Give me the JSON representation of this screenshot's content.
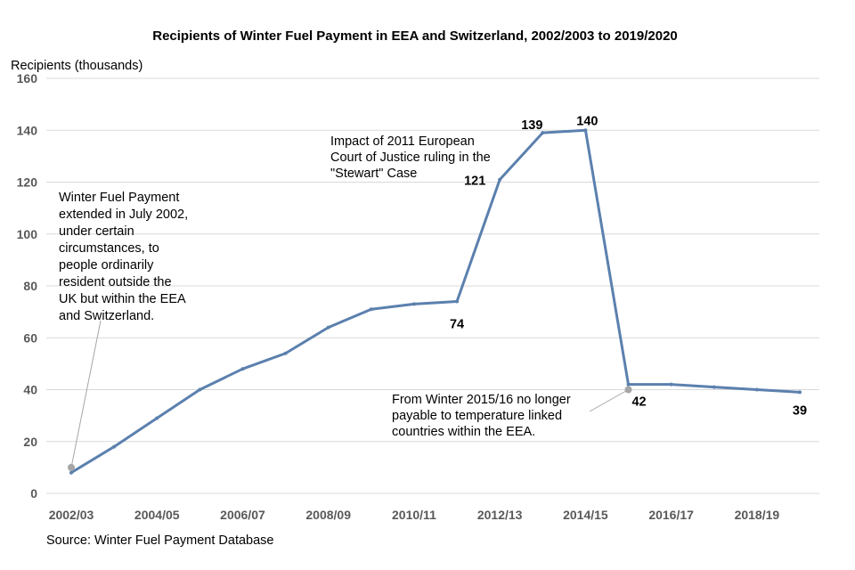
{
  "chart_data": {
    "type": "line",
    "title": "Recipients of Winter Fuel Payment in EEA and Switzerland, 2002/2003 to 2019/2020",
    "ylabel": "Recipients (thousands)",
    "xlabel": "",
    "source": "Source: Winter Fuel Payment Database",
    "ylim": [
      0,
      160
    ],
    "yticks": [
      "0",
      "20",
      "40",
      "60",
      "80",
      "100",
      "120",
      "140",
      "160"
    ],
    "categories": [
      "2002/03",
      "2003/04",
      "2004/05",
      "2005/06",
      "2006/07",
      "2007/08",
      "2008/09",
      "2009/10",
      "2010/11",
      "2011/12",
      "2012/13",
      "2013/14",
      "2014/15",
      "2015/16",
      "2016/17",
      "2017/18",
      "2018/19",
      "2019/20"
    ],
    "xtick_labels": [
      "2002/03",
      "",
      "2004/05",
      "",
      "2006/07",
      "",
      "2008/09",
      "",
      "2010/11",
      "",
      "2012/13",
      "",
      "2014/15",
      "",
      "2016/17",
      "",
      "2018/19",
      ""
    ],
    "values": [
      8,
      18,
      29,
      40,
      48,
      54,
      64,
      71,
      73,
      74,
      121,
      139,
      140,
      42,
      42,
      41,
      40,
      39
    ],
    "series_color": "#5b80ae",
    "grid": true,
    "data_labels": [
      {
        "index": 9,
        "text": "74"
      },
      {
        "index": 10,
        "text": "121"
      },
      {
        "index": 11,
        "text": "139"
      },
      {
        "index": 12,
        "text": "140"
      },
      {
        "index": 13,
        "text": "42"
      },
      {
        "index": 17,
        "text": "39"
      }
    ],
    "annotations": [
      {
        "name": "annotation-2002",
        "lines": [
          "Winter Fuel Payment",
          "extended in July 2002,",
          "under certain",
          "circumstances, to",
          "people ordinarily",
          "resident outside the",
          "UK but within the EEA",
          "and Switzerland."
        ],
        "marker_index": 0,
        "marker_value": 10
      },
      {
        "name": "annotation-stewart",
        "lines": [
          "Impact of 2011 European",
          "Court of Justice ruling in the",
          "\"Stewart\" Case"
        ]
      },
      {
        "name": "annotation-2015",
        "lines": [
          "From Winter 2015/16 no longer",
          "payable to temperature linked",
          "countries within the EEA."
        ],
        "marker_index": 13,
        "marker_value": 40
      }
    ]
  }
}
